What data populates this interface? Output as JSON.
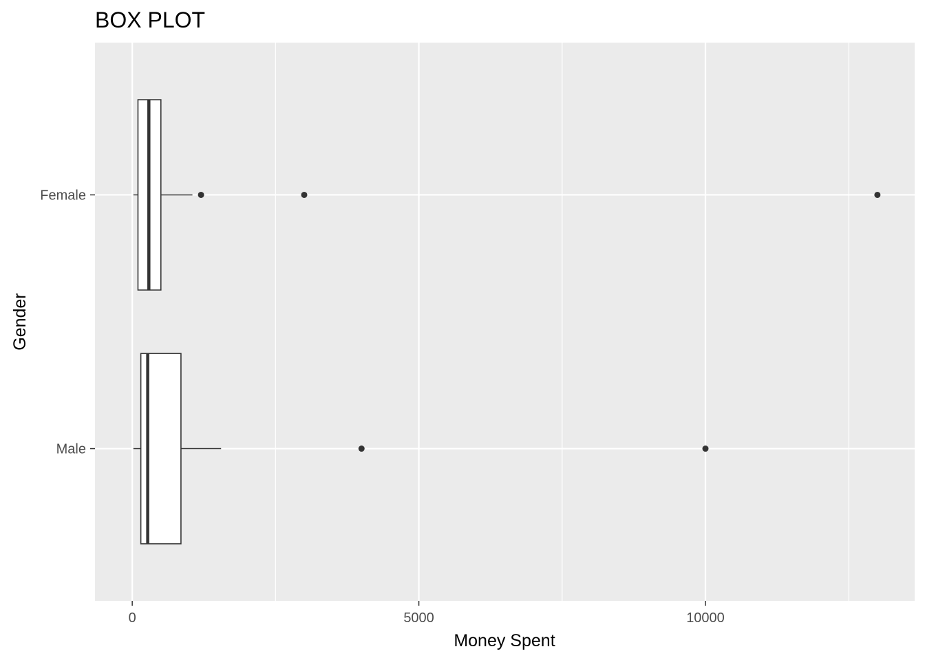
{
  "chart_data": {
    "type": "boxplot",
    "orientation": "horizontal",
    "title": "BOX PLOT",
    "xlabel": "Money Spent",
    "ylabel": "Gender",
    "xlim": [
      -650,
      13650
    ],
    "x_ticks": [
      0,
      5000,
      10000
    ],
    "x_minor_ticks": [
      2500,
      7500,
      12500
    ],
    "categories": [
      "Female",
      "Male"
    ],
    "boxes": [
      {
        "category": "Female",
        "whisker_low": 20,
        "q1": 100,
        "median": 290,
        "q3": 500,
        "whisker_high": 1050,
        "outliers": [
          1200,
          3000,
          13000
        ]
      },
      {
        "category": "Male",
        "whisker_low": 20,
        "q1": 150,
        "median": 270,
        "q3": 850,
        "whisker_high": 1550,
        "outliers": [
          4000,
          10000
        ]
      }
    ],
    "grid": true,
    "colors": {
      "panel_background": "#ebebeb",
      "grid": "#ffffff",
      "box_fill": "#ffffff",
      "box_line": "#333333",
      "point": "#333333"
    }
  }
}
